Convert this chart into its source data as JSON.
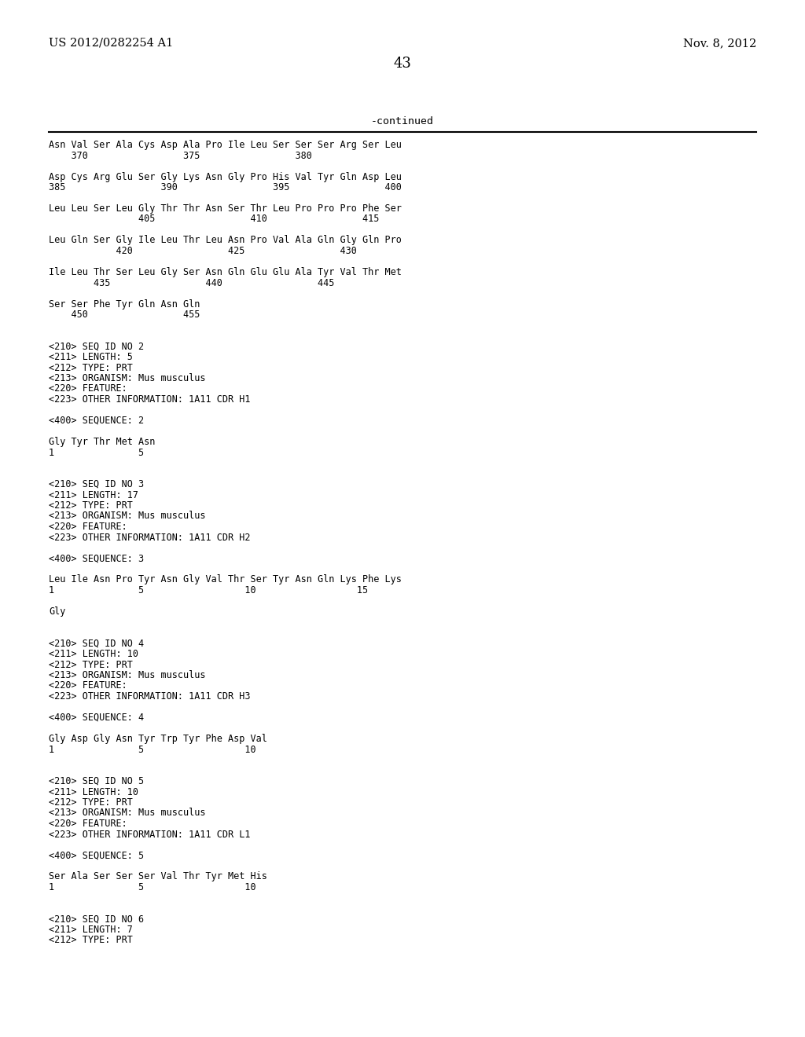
{
  "bg_color": "#ffffff",
  "header_left": "US 2012/0282254 A1",
  "header_right": "Nov. 8, 2012",
  "page_number": "43",
  "continued_label": "-continued",
  "monospace_lines": [
    "Asn Val Ser Ala Cys Asp Ala Pro Ile Leu Ser Ser Ser Arg Ser Leu",
    "    370                 375                 380",
    "",
    "Asp Cys Arg Glu Ser Gly Lys Asn Gly Pro His Val Tyr Gln Asp Leu",
    "385                 390                 395                 400",
    "",
    "Leu Leu Ser Leu Gly Thr Thr Asn Ser Thr Leu Pro Pro Pro Phe Ser",
    "                405                 410                 415",
    "",
    "Leu Gln Ser Gly Ile Leu Thr Leu Asn Pro Val Ala Gln Gly Gln Pro",
    "            420                 425                 430",
    "",
    "Ile Leu Thr Ser Leu Gly Ser Asn Gln Glu Glu Ala Tyr Val Thr Met",
    "        435                 440                 445",
    "",
    "Ser Ser Phe Tyr Gln Asn Gln",
    "    450                 455",
    "",
    "",
    "<210> SEQ ID NO 2",
    "<211> LENGTH: 5",
    "<212> TYPE: PRT",
    "<213> ORGANISM: Mus musculus",
    "<220> FEATURE:",
    "<223> OTHER INFORMATION: 1A11 CDR H1",
    "",
    "<400> SEQUENCE: 2",
    "",
    "Gly Tyr Thr Met Asn",
    "1               5",
    "",
    "",
    "<210> SEQ ID NO 3",
    "<211> LENGTH: 17",
    "<212> TYPE: PRT",
    "<213> ORGANISM: Mus musculus",
    "<220> FEATURE:",
    "<223> OTHER INFORMATION: 1A11 CDR H2",
    "",
    "<400> SEQUENCE: 3",
    "",
    "Leu Ile Asn Pro Tyr Asn Gly Val Thr Ser Tyr Asn Gln Lys Phe Lys",
    "1               5                  10                  15",
    "",
    "Gly",
    "",
    "",
    "<210> SEQ ID NO 4",
    "<211> LENGTH: 10",
    "<212> TYPE: PRT",
    "<213> ORGANISM: Mus musculus",
    "<220> FEATURE:",
    "<223> OTHER INFORMATION: 1A11 CDR H3",
    "",
    "<400> SEQUENCE: 4",
    "",
    "Gly Asp Gly Asn Tyr Trp Tyr Phe Asp Val",
    "1               5                  10",
    "",
    "",
    "<210> SEQ ID NO 5",
    "<211> LENGTH: 10",
    "<212> TYPE: PRT",
    "<213> ORGANISM: Mus musculus",
    "<220> FEATURE:",
    "<223> OTHER INFORMATION: 1A11 CDR L1",
    "",
    "<400> SEQUENCE: 5",
    "",
    "Ser Ala Ser Ser Ser Val Thr Tyr Met His",
    "1               5                  10",
    "",
    "",
    "<210> SEQ ID NO 6",
    "<211> LENGTH: 7",
    "<212> TYPE: PRT"
  ]
}
